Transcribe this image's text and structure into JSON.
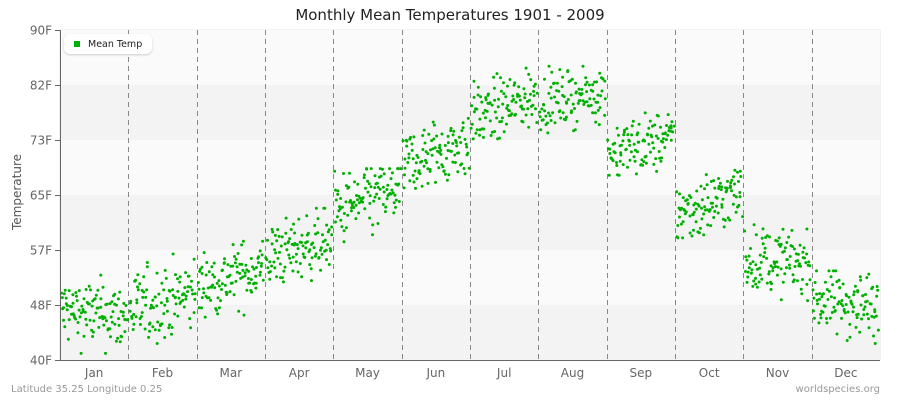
{
  "header": {
    "title": "Monthly Mean Temperatures 1901 - 2009"
  },
  "footer": {
    "location": "Latitude 35.25 Longitude 0.25",
    "source": "worldspecies.org"
  },
  "legend": {
    "label": "Mean Temp",
    "color": "#00b000"
  },
  "colors": {
    "point": "#00b000",
    "band_light": "#fafafa",
    "band_dark": "#f3f3f3",
    "axis": "#666666",
    "divider": "#888888"
  },
  "chart_data": {
    "type": "scatter",
    "title": "Monthly Mean Temperatures 1901 - 2009",
    "xlabel": "",
    "ylabel": "Temperature",
    "ylim": [
      40,
      90
    ],
    "yticks": [
      {
        "value": 40,
        "label": "40F"
      },
      {
        "value": 48.33,
        "label": "48F"
      },
      {
        "value": 56.67,
        "label": "57F"
      },
      {
        "value": 65,
        "label": "65F"
      },
      {
        "value": 73.33,
        "label": "73F"
      },
      {
        "value": 81.67,
        "label": "82F"
      },
      {
        "value": 90,
        "label": "90F"
      }
    ],
    "categories": [
      "Jan",
      "Feb",
      "Mar",
      "Apr",
      "May",
      "Jun",
      "Jul",
      "Aug",
      "Sep",
      "Oct",
      "Nov",
      "Dec"
    ],
    "years": [
      1901,
      2009
    ],
    "points_per_month": 109,
    "series": [
      {
        "name": "Mean Temp",
        "color": "#00b000",
        "monthly_mean_start": [
          47.5,
          47.5,
          51.0,
          55.5,
          62.5,
          69.5,
          76.5,
          79.0,
          71.5,
          62.0,
          55.5,
          49.5
        ],
        "monthly_mean_end": [
          46.5,
          50.0,
          54.0,
          58.5,
          66.0,
          73.0,
          80.0,
          80.5,
          73.5,
          65.5,
          54.5,
          48.0
        ],
        "monthly_spread": [
          2.6,
          2.8,
          2.4,
          2.4,
          2.8,
          2.6,
          2.4,
          2.0,
          2.2,
          2.4,
          2.4,
          2.6
        ],
        "monthly_min": [
          41.0,
          42.5,
          46.5,
          50.5,
          57.0,
          66.0,
          73.5,
          73.5,
          68.0,
          58.5,
          49.0,
          42.5
        ],
        "monthly_max": [
          53.5,
          57.5,
          58.0,
          63.0,
          69.0,
          77.0,
          85.5,
          84.5,
          79.0,
          69.5,
          60.5,
          53.5
        ]
      }
    ],
    "grid": {
      "horizontal_bands": true,
      "vertical_dividers": "dashed"
    },
    "legend_position": "top-left"
  }
}
